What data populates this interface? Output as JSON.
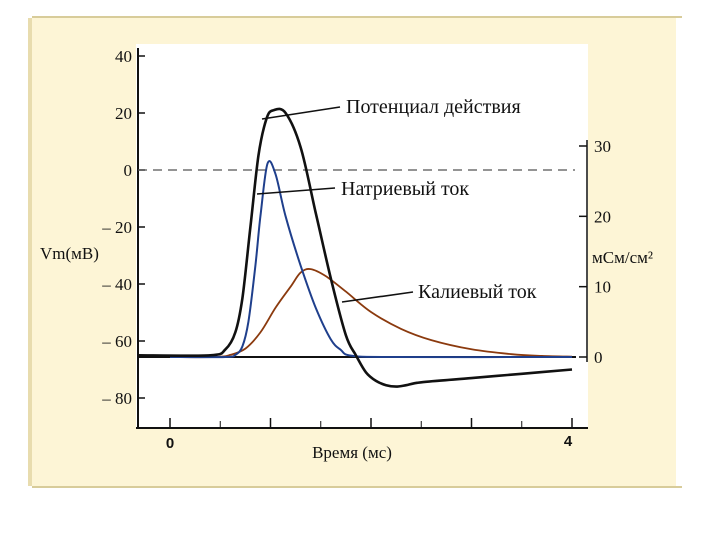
{
  "chart_data": {
    "type": "line",
    "xlabel": "Время (мс)",
    "x_tick_labels": [
      "0",
      "4"
    ],
    "xlim": [
      0,
      4
    ],
    "left_axis": {
      "ylabel": "Vm(мВ)",
      "ylim": [
        -80,
        40
      ],
      "tick_labels": [
        "40",
        "20",
        "0",
        "– 20",
        "– 40",
        "– 60",
        "– 80"
      ],
      "tick_values": [
        40,
        20,
        0,
        -20,
        -40,
        -60,
        -80
      ]
    },
    "right_axis": {
      "ylabel": "мСм/см²",
      "ylim": [
        0,
        30
      ],
      "tick_labels": [
        "30",
        "20",
        "10",
        "0"
      ],
      "tick_values": [
        30,
        20,
        10,
        0
      ]
    },
    "reference_line": {
      "axis": "left",
      "y": 0,
      "style": "dashed"
    },
    "series": [
      {
        "name": "Потенциал действия",
        "axis": "left",
        "color": "#111111",
        "x": [
          0,
          0.4,
          0.55,
          0.65,
          0.72,
          0.8,
          0.88,
          0.96,
          1.03,
          1.15,
          1.3,
          1.45,
          1.6,
          1.75,
          1.85,
          1.95,
          2.05,
          2.15,
          2.25,
          2.35,
          2.5,
          3.0,
          3.5,
          4.0
        ],
        "y": [
          -65,
          -65,
          -63,
          -57,
          -45,
          -20,
          5,
          18,
          21,
          20,
          8,
          -15,
          -38,
          -58,
          -65,
          -71,
          -74,
          -75.5,
          -76,
          -75.5,
          -74.5,
          -73,
          -71.5,
          -70
        ]
      },
      {
        "name": "Натриевый ток",
        "axis": "right",
        "color": "#1f3f8c",
        "x": [
          0,
          0.55,
          0.65,
          0.72,
          0.78,
          0.85,
          0.9,
          0.97,
          1.05,
          1.15,
          1.3,
          1.45,
          1.6,
          1.7,
          1.8,
          2.2,
          4.0
        ],
        "y": [
          0,
          0,
          0.3,
          1.5,
          5,
          13,
          20,
          27.5,
          26,
          20,
          13,
          7,
          2.5,
          1,
          0.2,
          0,
          0
        ]
      },
      {
        "name": "Калиевый ток",
        "axis": "right",
        "color": "#8b3a0e",
        "x": [
          0,
          0.45,
          0.6,
          0.75,
          0.9,
          1.05,
          1.2,
          1.3,
          1.4,
          1.55,
          1.75,
          2.0,
          2.3,
          2.6,
          3.0,
          3.4,
          3.7,
          4.0
        ],
        "y": [
          0,
          0,
          0.3,
          1.2,
          3.5,
          7,
          10,
          12,
          12.5,
          11.5,
          9.3,
          6.4,
          4,
          2.4,
          1.1,
          0.4,
          0.15,
          0.05
        ]
      }
    ],
    "annotations": [
      "Потенциал действия",
      "Натриевый ток",
      "Калиевый ток"
    ],
    "grid": false,
    "legend": "none (inline callout labels)"
  }
}
